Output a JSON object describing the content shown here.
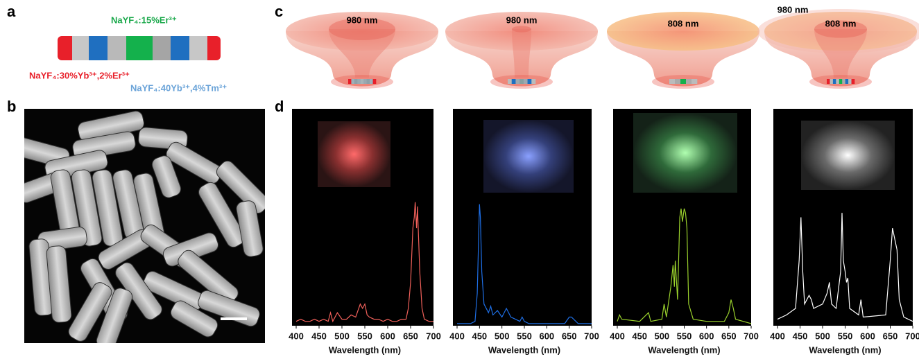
{
  "panel_labels": [
    "a",
    "b",
    "c",
    "d"
  ],
  "panel_a": {
    "green_label": "NaYF₄:15%Er³⁺",
    "red_label": "NaYF₄:30%Yb³⁺,2%Er³⁺",
    "blue_label": "NaYF₄:40Yb³⁺,4%Tm³⁺"
  },
  "panel_c": {
    "labels": [
      "980 nm",
      "980 nm",
      "808 nm",
      "980 nm",
      "808 nm"
    ]
  },
  "chart_data": [
    {
      "type": "line",
      "xlabel": "Wavelength (nm)",
      "xlim": [
        400,
        700
      ],
      "xticks": [
        400,
        450,
        500,
        550,
        600,
        650,
        700
      ],
      "ylim": [
        0,
        100
      ],
      "color": "#f0605a",
      "x": [
        400,
        410,
        420,
        430,
        440,
        450,
        460,
        470,
        475,
        480,
        490,
        500,
        510,
        520,
        530,
        540,
        545,
        550,
        555,
        560,
        570,
        580,
        590,
        600,
        610,
        620,
        630,
        640,
        645,
        650,
        655,
        658,
        660,
        663,
        665,
        670,
        675,
        680,
        690,
        700
      ],
      "values": [
        2,
        3,
        2,
        2,
        3,
        2,
        3,
        2,
        6,
        2,
        6,
        3,
        3,
        5,
        4,
        10,
        8,
        10,
        5,
        4,
        3,
        3,
        2,
        3,
        2,
        2,
        3,
        3,
        8,
        20,
        45,
        50,
        57,
        45,
        55,
        25,
        8,
        3,
        2,
        2
      ]
    },
    {
      "type": "line",
      "xlabel": "Wavelength (nm)",
      "xlim": [
        400,
        700
      ],
      "xticks": [
        400,
        450,
        500,
        550,
        600,
        650,
        700
      ],
      "ylim": [
        0,
        100
      ],
      "color": "#1e6fe6",
      "x": [
        400,
        430,
        440,
        445,
        450,
        452,
        455,
        460,
        470,
        475,
        480,
        490,
        500,
        510,
        520,
        530,
        540,
        545,
        550,
        560,
        600,
        640,
        650,
        655,
        660,
        670,
        700
      ],
      "values": [
        1,
        1,
        2,
        15,
        56,
        50,
        25,
        10,
        6,
        9,
        5,
        7,
        4,
        8,
        4,
        3,
        2,
        4,
        2,
        1,
        1,
        1,
        4,
        4,
        3,
        1,
        1
      ]
    },
    {
      "type": "line",
      "xlabel": "Wavelength (nm)",
      "xlim": [
        400,
        700
      ],
      "xticks": [
        400,
        450,
        500,
        550,
        600,
        650,
        700
      ],
      "ylim": [
        0,
        100
      ],
      "color": "#9ad12c",
      "x": [
        400,
        405,
        410,
        450,
        470,
        475,
        500,
        505,
        510,
        520,
        525,
        528,
        530,
        535,
        540,
        543,
        546,
        550,
        553,
        556,
        560,
        570,
        600,
        640,
        650,
        655,
        660,
        665,
        700
      ],
      "values": [
        2,
        5,
        3,
        2,
        6,
        2,
        3,
        10,
        4,
        18,
        28,
        18,
        30,
        12,
        50,
        54,
        48,
        54,
        52,
        45,
        10,
        3,
        2,
        2,
        6,
        12,
        8,
        3,
        1
      ]
    },
    {
      "type": "line",
      "xlabel": "Wavelength (nm)",
      "xlim": [
        400,
        700
      ],
      "xticks": [
        400,
        450,
        500,
        550,
        600,
        650,
        700
      ],
      "ylim": [
        0,
        100
      ],
      "color": "#ffffff",
      "x": [
        400,
        420,
        440,
        448,
        452,
        456,
        460,
        470,
        475,
        480,
        500,
        510,
        515,
        520,
        530,
        540,
        543,
        546,
        550,
        553,
        556,
        560,
        580,
        585,
        590,
        640,
        650,
        655,
        660,
        665,
        670,
        680,
        700
      ],
      "values": [
        3,
        5,
        8,
        30,
        50,
        25,
        10,
        14,
        12,
        8,
        10,
        15,
        20,
        10,
        8,
        25,
        52,
        30,
        25,
        20,
        22,
        8,
        5,
        12,
        4,
        5,
        30,
        45,
        40,
        35,
        12,
        4,
        2
      ]
    }
  ]
}
